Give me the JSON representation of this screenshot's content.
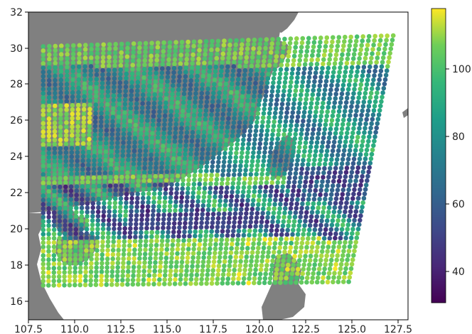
{
  "chart_data": {
    "type": "scatter",
    "title": "",
    "xlabel": "",
    "ylabel": "",
    "xlim": [
      107.5,
      128.0
    ],
    "ylim": [
      15.0,
      32.0
    ],
    "x_ticks": [
      "107.5",
      "110.0",
      "112.5",
      "115.0",
      "117.5",
      "120.0",
      "122.5",
      "125.0",
      "127.5"
    ],
    "x_tick_values": [
      107.5,
      110.0,
      112.5,
      115.0,
      117.5,
      120.0,
      122.5,
      125.0,
      127.5
    ],
    "y_ticks": [
      "16",
      "18",
      "20",
      "22",
      "24",
      "26",
      "28",
      "30",
      "32"
    ],
    "y_tick_values": [
      16,
      18,
      20,
      22,
      24,
      26,
      28,
      30,
      32
    ],
    "colorbar": {
      "range": [
        25,
        118
      ],
      "ticks": [
        "40",
        "60",
        "80",
        "100"
      ],
      "tick_values": [
        40,
        60,
        80,
        100
      ],
      "colormap": "viridis"
    },
    "swath_corners": {
      "top_left": [
        108.3,
        30.1
      ],
      "top_right": [
        127.2,
        30.7
      ],
      "bottom_right": [
        124.8,
        17.1
      ],
      "bottom_left": [
        108.3,
        16.9
      ]
    },
    "colors": {
      "land": "#808080",
      "ocean": "#ffffff",
      "axes": "#000000"
    }
  }
}
